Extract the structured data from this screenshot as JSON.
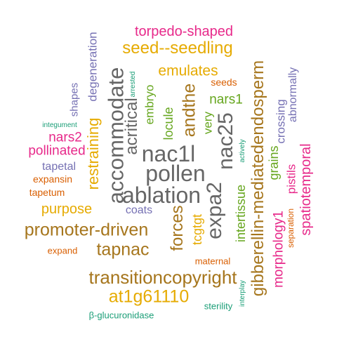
{
  "colors": {
    "green": "#1b9e77",
    "orange": "#d95f02",
    "purple": "#7570b3",
    "magenta": "#e7298a",
    "olive": "#66a61e",
    "gold": "#e6ab02",
    "brown": "#a6761d",
    "gray": "#666666"
  },
  "words": [
    {
      "text": "torpedo-shaped",
      "color": "magenta"
    },
    {
      "text": "seed--seedling",
      "color": "gold"
    },
    {
      "text": "emulates",
      "color": "gold"
    },
    {
      "text": "seeds",
      "color": "orange"
    },
    {
      "text": "nars1",
      "color": "olive"
    },
    {
      "text": "integument",
      "color": "green"
    },
    {
      "text": "nars2",
      "color": "magenta"
    },
    {
      "text": "pollinated",
      "color": "magenta"
    },
    {
      "text": "expansin",
      "color": "orange"
    },
    {
      "text": "tapetal",
      "color": "purple"
    },
    {
      "text": "tapetum",
      "color": "orange"
    },
    {
      "text": "purpose",
      "color": "gold"
    },
    {
      "text": "coats",
      "color": "purple"
    },
    {
      "text": "nac1l",
      "color": "gray"
    },
    {
      "text": "pollen",
      "color": "gray"
    },
    {
      "text": "ablation",
      "color": "gray"
    },
    {
      "text": "promoter-driven",
      "color": "brown"
    },
    {
      "text": "tapnac",
      "color": "brown"
    },
    {
      "text": "expand",
      "color": "orange"
    },
    {
      "text": "maternal",
      "color": "orange"
    },
    {
      "text": "transitioncopyright",
      "color": "brown"
    },
    {
      "text": "at1g61110",
      "color": "gold"
    },
    {
      "text": "sterility",
      "color": "green"
    },
    {
      "text": "β-glucuronidase",
      "color": "green"
    },
    {
      "text": "degeneration",
      "color": "purple"
    },
    {
      "text": "shapes",
      "color": "purple"
    },
    {
      "text": "restraining",
      "color": "gold"
    },
    {
      "text": "accommodate",
      "color": "gray"
    },
    {
      "text": "acritical",
      "color": "gray"
    },
    {
      "text": "arrested",
      "color": "green"
    },
    {
      "text": "embryo",
      "color": "olive"
    },
    {
      "text": "locule",
      "color": "olive"
    },
    {
      "text": "andthe",
      "color": "brown"
    },
    {
      "text": "forces",
      "color": "brown"
    },
    {
      "text": "tcgtgt",
      "color": "gold"
    },
    {
      "text": "very",
      "color": "olive"
    },
    {
      "text": "nac25",
      "color": "gray"
    },
    {
      "text": "expa2",
      "color": "gray"
    },
    {
      "text": "intertissue",
      "color": "olive"
    },
    {
      "text": "actively",
      "color": "green"
    },
    {
      "text": "gibberellin-mediatedendosperm",
      "color": "brown"
    },
    {
      "text": "interplay",
      "color": "green"
    },
    {
      "text": "grains",
      "color": "olive"
    },
    {
      "text": "morphology1",
      "color": "magenta"
    },
    {
      "text": "crossing",
      "color": "purple"
    },
    {
      "text": "separation",
      "color": "orange"
    },
    {
      "text": "pistils",
      "color": "magenta"
    },
    {
      "text": "abnormally",
      "color": "purple"
    },
    {
      "text": "spatiotemporal",
      "color": "magenta"
    }
  ]
}
